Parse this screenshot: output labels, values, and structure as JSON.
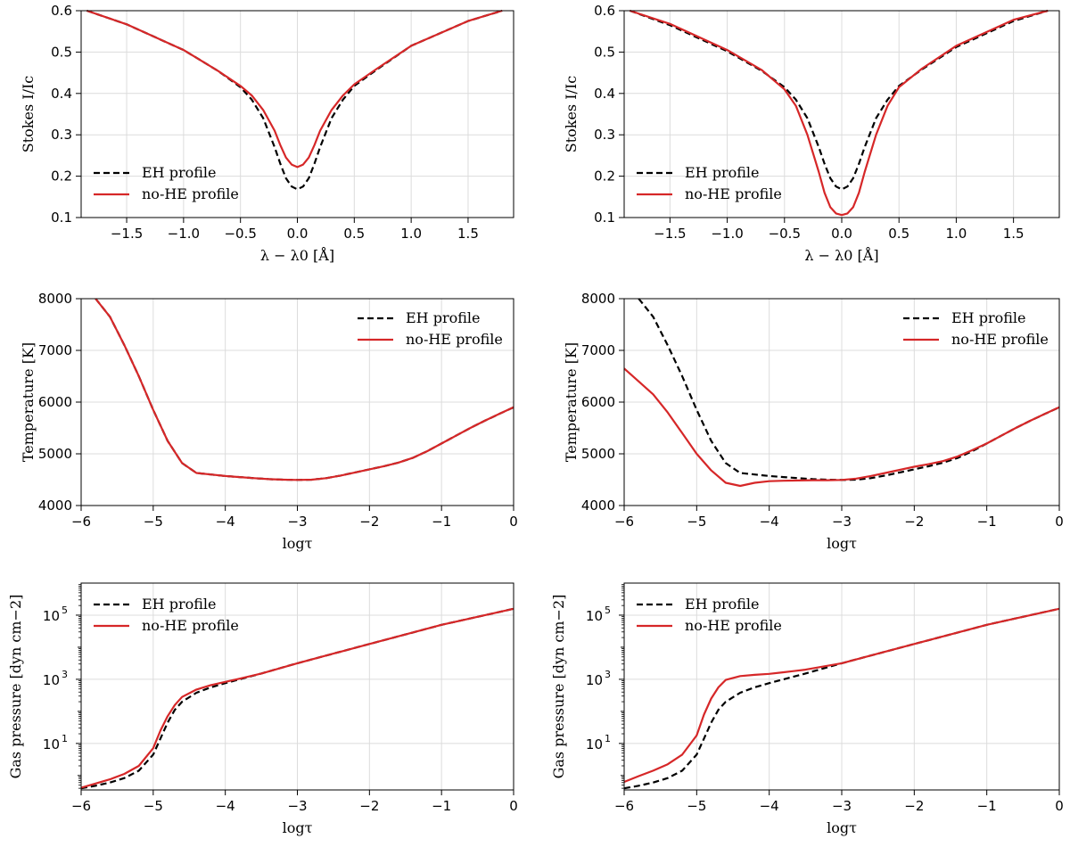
{
  "colors": {
    "eh": "#000000",
    "nohe": "#d62728",
    "grid": "#dcdcdc"
  },
  "chart_data": [
    {
      "type": "line",
      "id": "stokes-left",
      "xlabel": "λ − λ0 [Å]",
      "ylabel": "Stokes I/Ic",
      "xlim": [
        -1.9,
        1.9
      ],
      "ylim": [
        0.1,
        0.6
      ],
      "xticks": [
        -1.5,
        -1.0,
        -0.5,
        0.0,
        0.5,
        1.0,
        1.5
      ],
      "xtick_labels": [
        "−1.5",
        "−1.0",
        "−0.5",
        "0.0",
        "0.5",
        "1.0",
        "1.5"
      ],
      "yticks": [
        0.1,
        0.2,
        0.3,
        0.4,
        0.5,
        0.6
      ],
      "ytick_labels": [
        "0.1",
        "0.2",
        "0.3",
        "0.4",
        "0.5",
        "0.6"
      ],
      "legend": "lower-left",
      "series": [
        {
          "name": "EH profile",
          "style": "dashed",
          "color": "#000000",
          "x": [
            -1.85,
            -1.5,
            -1.0,
            -0.7,
            -0.5,
            -0.4,
            -0.3,
            -0.2,
            -0.15,
            -0.1,
            -0.05,
            0.0,
            0.05,
            0.1,
            0.15,
            0.2,
            0.3,
            0.4,
            0.5,
            0.7,
            1.0,
            1.5,
            1.8
          ],
          "y": [
            0.6,
            0.567,
            0.505,
            0.455,
            0.415,
            0.385,
            0.34,
            0.27,
            0.23,
            0.195,
            0.175,
            0.168,
            0.175,
            0.195,
            0.23,
            0.27,
            0.34,
            0.385,
            0.418,
            0.458,
            0.515,
            0.575,
            0.6
          ]
        },
        {
          "name": "no-HE profile",
          "style": "solid",
          "color": "#d62728",
          "x": [
            -1.85,
            -1.5,
            -1.0,
            -0.7,
            -0.5,
            -0.4,
            -0.3,
            -0.2,
            -0.15,
            -0.1,
            -0.05,
            0.0,
            0.05,
            0.1,
            0.15,
            0.2,
            0.3,
            0.4,
            0.5,
            0.7,
            1.0,
            1.5,
            1.8
          ],
          "y": [
            0.6,
            0.567,
            0.505,
            0.455,
            0.418,
            0.395,
            0.36,
            0.31,
            0.275,
            0.245,
            0.228,
            0.222,
            0.228,
            0.245,
            0.275,
            0.31,
            0.36,
            0.395,
            0.422,
            0.46,
            0.515,
            0.575,
            0.6
          ]
        }
      ]
    },
    {
      "type": "line",
      "id": "stokes-right",
      "xlabel": "λ − λ0 [Å]",
      "ylabel": "Stokes I/Ic",
      "xlim": [
        -1.9,
        1.9
      ],
      "ylim": [
        0.1,
        0.6
      ],
      "xticks": [
        -1.5,
        -1.0,
        -0.5,
        0.0,
        0.5,
        1.0,
        1.5
      ],
      "xtick_labels": [
        "−1.5",
        "−1.0",
        "−0.5",
        "0.0",
        "0.5",
        "1.0",
        "1.5"
      ],
      "yticks": [
        0.1,
        0.2,
        0.3,
        0.4,
        0.5,
        0.6
      ],
      "ytick_labels": [
        "0.1",
        "0.2",
        "0.3",
        "0.4",
        "0.5",
        "0.6"
      ],
      "legend": "lower-left",
      "series": [
        {
          "name": "EH profile",
          "style": "dashed",
          "color": "#000000",
          "x": [
            -1.85,
            -1.5,
            -1.0,
            -0.7,
            -0.5,
            -0.4,
            -0.3,
            -0.2,
            -0.15,
            -0.1,
            -0.05,
            0.0,
            0.05,
            0.1,
            0.15,
            0.2,
            0.3,
            0.4,
            0.5,
            0.7,
            1.0,
            1.5,
            1.8
          ],
          "y": [
            0.6,
            0.565,
            0.502,
            0.455,
            0.415,
            0.385,
            0.34,
            0.27,
            0.23,
            0.195,
            0.175,
            0.168,
            0.175,
            0.195,
            0.23,
            0.27,
            0.34,
            0.385,
            0.418,
            0.458,
            0.512,
            0.575,
            0.6
          ]
        },
        {
          "name": "no-HE profile",
          "style": "solid",
          "color": "#d62728",
          "x": [
            -1.85,
            -1.5,
            -1.0,
            -0.7,
            -0.5,
            -0.4,
            -0.3,
            -0.2,
            -0.15,
            -0.1,
            -0.05,
            0.0,
            0.05,
            0.1,
            0.15,
            0.2,
            0.3,
            0.4,
            0.5,
            0.7,
            1.0,
            1.5,
            1.8
          ],
          "y": [
            0.6,
            0.568,
            0.505,
            0.457,
            0.41,
            0.37,
            0.3,
            0.21,
            0.16,
            0.125,
            0.11,
            0.106,
            0.11,
            0.125,
            0.16,
            0.21,
            0.3,
            0.37,
            0.415,
            0.46,
            0.515,
            0.578,
            0.6
          ]
        }
      ]
    },
    {
      "type": "line",
      "id": "temperature-left",
      "xlabel": "logτ",
      "ylabel": "Temperature [K]",
      "xlim": [
        -6,
        0
      ],
      "ylim": [
        4000,
        8000
      ],
      "xticks": [
        -6,
        -5,
        -4,
        -3,
        -2,
        -1,
        0
      ],
      "xtick_labels": [
        "−6",
        "−5",
        "−4",
        "−3",
        "−2",
        "−1",
        "0"
      ],
      "yticks": [
        4000,
        5000,
        6000,
        7000,
        8000
      ],
      "ytick_labels": [
        "4000",
        "5000",
        "6000",
        "7000",
        "8000"
      ],
      "legend": "upper-right",
      "series": [
        {
          "name": "EH profile",
          "style": "dashed",
          "color": "#000000",
          "x": [
            -5.8,
            -5.6,
            -5.4,
            -5.2,
            -5.0,
            -4.8,
            -4.6,
            -4.4,
            -4.2,
            -4.0,
            -3.8,
            -3.6,
            -3.4,
            -3.2,
            -3.0,
            -2.8,
            -2.6,
            -2.4,
            -2.2,
            -2.0,
            -1.8,
            -1.6,
            -1.4,
            -1.2,
            -1.0,
            -0.8,
            -0.6,
            -0.4,
            -0.2,
            0.0
          ],
          "y": [
            8000,
            7650,
            7100,
            6500,
            5850,
            5250,
            4820,
            4630,
            4600,
            4570,
            4550,
            4530,
            4510,
            4500,
            4495,
            4500,
            4530,
            4580,
            4640,
            4700,
            4760,
            4830,
            4920,
            5050,
            5200,
            5350,
            5500,
            5640,
            5770,
            5900
          ]
        },
        {
          "name": "no-HE profile",
          "style": "solid",
          "color": "#d62728",
          "x": [
            -5.8,
            -5.6,
            -5.4,
            -5.2,
            -5.0,
            -4.8,
            -4.6,
            -4.4,
            -4.2,
            -4.0,
            -3.8,
            -3.6,
            -3.4,
            -3.2,
            -3.0,
            -2.8,
            -2.6,
            -2.4,
            -2.2,
            -2.0,
            -1.8,
            -1.6,
            -1.4,
            -1.2,
            -1.0,
            -0.8,
            -0.6,
            -0.4,
            -0.2,
            0.0
          ],
          "y": [
            8000,
            7650,
            7100,
            6500,
            5850,
            5250,
            4820,
            4630,
            4600,
            4570,
            4550,
            4530,
            4510,
            4500,
            4495,
            4500,
            4530,
            4580,
            4640,
            4700,
            4760,
            4830,
            4920,
            5050,
            5200,
            5350,
            5500,
            5640,
            5770,
            5900
          ]
        }
      ]
    },
    {
      "type": "line",
      "id": "temperature-right",
      "xlabel": "logτ",
      "ylabel": "Temperature [K]",
      "xlim": [
        -6,
        0
      ],
      "ylim": [
        4000,
        8000
      ],
      "xticks": [
        -6,
        -5,
        -4,
        -3,
        -2,
        -1,
        0
      ],
      "xtick_labels": [
        "−6",
        "−5",
        "−4",
        "−3",
        "−2",
        "−1",
        "0"
      ],
      "yticks": [
        4000,
        5000,
        6000,
        7000,
        8000
      ],
      "ytick_labels": [
        "4000",
        "5000",
        "6000",
        "7000",
        "8000"
      ],
      "legend": "upper-right",
      "series": [
        {
          "name": "EH profile",
          "style": "dashed",
          "color": "#000000",
          "x": [
            -5.8,
            -5.6,
            -5.4,
            -5.2,
            -5.0,
            -4.8,
            -4.6,
            -4.4,
            -4.2,
            -4.0,
            -3.8,
            -3.6,
            -3.4,
            -3.2,
            -3.0,
            -2.8,
            -2.6,
            -2.4,
            -2.2,
            -2.0,
            -1.8,
            -1.6,
            -1.4,
            -1.2,
            -1.0,
            -0.8,
            -0.6,
            -0.4,
            -0.2,
            0.0
          ],
          "y": [
            8000,
            7650,
            7100,
            6500,
            5850,
            5250,
            4820,
            4630,
            4600,
            4570,
            4550,
            4530,
            4510,
            4500,
            4495,
            4500,
            4530,
            4580,
            4640,
            4700,
            4760,
            4830,
            4920,
            5050,
            5200,
            5350,
            5500,
            5640,
            5770,
            5900
          ]
        },
        {
          "name": "no-HE profile",
          "style": "solid",
          "color": "#d62728",
          "x": [
            -6.0,
            -5.8,
            -5.6,
            -5.4,
            -5.2,
            -5.0,
            -4.8,
            -4.6,
            -4.4,
            -4.2,
            -4.0,
            -3.8,
            -3.6,
            -3.4,
            -3.2,
            -3.0,
            -2.8,
            -2.6,
            -2.4,
            -2.2,
            -2.0,
            -1.8,
            -1.6,
            -1.4,
            -1.2,
            -1.0,
            -0.8,
            -0.6,
            -0.4,
            -0.2,
            0.0
          ],
          "y": [
            6650,
            6400,
            6150,
            5800,
            5400,
            5000,
            4680,
            4440,
            4380,
            4440,
            4470,
            4480,
            4485,
            4490,
            4490,
            4495,
            4520,
            4570,
            4630,
            4690,
            4750,
            4800,
            4860,
            4950,
            5070,
            5200,
            5350,
            5500,
            5640,
            5770,
            5900
          ]
        }
      ]
    },
    {
      "type": "line",
      "id": "pressure-left",
      "xlabel": "logτ",
      "ylabel": "Gas pressure [dyn cm−2]",
      "yscale": "log",
      "xlim": [
        -6,
        0
      ],
      "ylim_log10": [
        -0.45,
        6.0
      ],
      "xticks": [
        -6,
        -5,
        -4,
        -3,
        -2,
        -1,
        0
      ],
      "xtick_labels": [
        "−6",
        "−5",
        "−4",
        "−3",
        "−2",
        "−1",
        "0"
      ],
      "yticks_log10": [
        1,
        3,
        5
      ],
      "ytick_labels": [
        "10",
        "10",
        "10"
      ],
      "ytick_exponents": [
        "1",
        "3",
        "5"
      ],
      "legend": "upper-left",
      "series": [
        {
          "name": "EH profile",
          "style": "dashed",
          "color": "#000000",
          "x": [
            -6.0,
            -5.8,
            -5.6,
            -5.4,
            -5.2,
            -5.0,
            -4.9,
            -4.8,
            -4.7,
            -4.6,
            -4.4,
            -4.2,
            -4.0,
            -3.8,
            -3.5,
            -3.0,
            -2.5,
            -2.0,
            -1.5,
            -1.0,
            -0.5,
            0.0
          ],
          "y_log10": [
            -0.4,
            -0.32,
            -0.22,
            -0.08,
            0.15,
            0.65,
            1.15,
            1.65,
            2.05,
            2.3,
            2.58,
            2.75,
            2.88,
            3.0,
            3.18,
            3.5,
            3.8,
            4.1,
            4.4,
            4.7,
            4.95,
            5.2
          ]
        },
        {
          "name": "no-HE profile",
          "style": "solid",
          "color": "#d62728",
          "x": [
            -6.0,
            -5.8,
            -5.6,
            -5.4,
            -5.2,
            -5.0,
            -4.9,
            -4.8,
            -4.7,
            -4.6,
            -4.4,
            -4.2,
            -4.0,
            -3.8,
            -3.5,
            -3.0,
            -2.5,
            -2.0,
            -1.5,
            -1.0,
            -0.5,
            0.0
          ],
          "y_log10": [
            -0.38,
            -0.25,
            -0.12,
            0.05,
            0.3,
            0.85,
            1.4,
            1.85,
            2.2,
            2.45,
            2.68,
            2.82,
            2.92,
            3.02,
            3.18,
            3.5,
            3.8,
            4.1,
            4.4,
            4.7,
            4.95,
            5.2
          ]
        }
      ]
    },
    {
      "type": "line",
      "id": "pressure-right",
      "xlabel": "logτ",
      "ylabel": "Gas pressure [dyn cm−2]",
      "yscale": "log",
      "xlim": [
        -6,
        0
      ],
      "ylim_log10": [
        -0.45,
        6.0
      ],
      "xticks": [
        -6,
        -5,
        -4,
        -3,
        -2,
        -1,
        0
      ],
      "xtick_labels": [
        "−6",
        "−5",
        "−4",
        "−3",
        "−2",
        "−1",
        "0"
      ],
      "yticks_log10": [
        1,
        3,
        5
      ],
      "ytick_labels": [
        "10",
        "10",
        "10"
      ],
      "ytick_exponents": [
        "1",
        "3",
        "5"
      ],
      "legend": "upper-left",
      "series": [
        {
          "name": "EH profile",
          "style": "dashed",
          "color": "#000000",
          "x": [
            -6.0,
            -5.8,
            -5.6,
            -5.4,
            -5.2,
            -5.0,
            -4.9,
            -4.8,
            -4.7,
            -4.6,
            -4.4,
            -4.2,
            -4.0,
            -3.8,
            -3.5,
            -3.0,
            -2.5,
            -2.0,
            -1.5,
            -1.0,
            -0.5,
            0.0
          ],
          "y_log10": [
            -0.4,
            -0.32,
            -0.22,
            -0.08,
            0.15,
            0.65,
            1.15,
            1.65,
            2.05,
            2.3,
            2.58,
            2.75,
            2.88,
            3.0,
            3.18,
            3.5,
            3.8,
            4.1,
            4.4,
            4.7,
            4.95,
            5.2
          ]
        },
        {
          "name": "no-HE profile",
          "style": "solid",
          "color": "#d62728",
          "x": [
            -6.0,
            -5.8,
            -5.6,
            -5.4,
            -5.2,
            -5.0,
            -4.9,
            -4.8,
            -4.7,
            -4.6,
            -4.4,
            -4.2,
            -4.0,
            -3.8,
            -3.5,
            -3.0,
            -2.5,
            -2.0,
            -1.5,
            -1.0,
            -0.5,
            0.0
          ],
          "y_log10": [
            -0.2,
            -0.02,
            0.15,
            0.35,
            0.65,
            1.25,
            1.9,
            2.4,
            2.75,
            2.98,
            3.1,
            3.14,
            3.17,
            3.22,
            3.3,
            3.5,
            3.8,
            4.1,
            4.4,
            4.7,
            4.95,
            5.2
          ]
        }
      ]
    }
  ]
}
